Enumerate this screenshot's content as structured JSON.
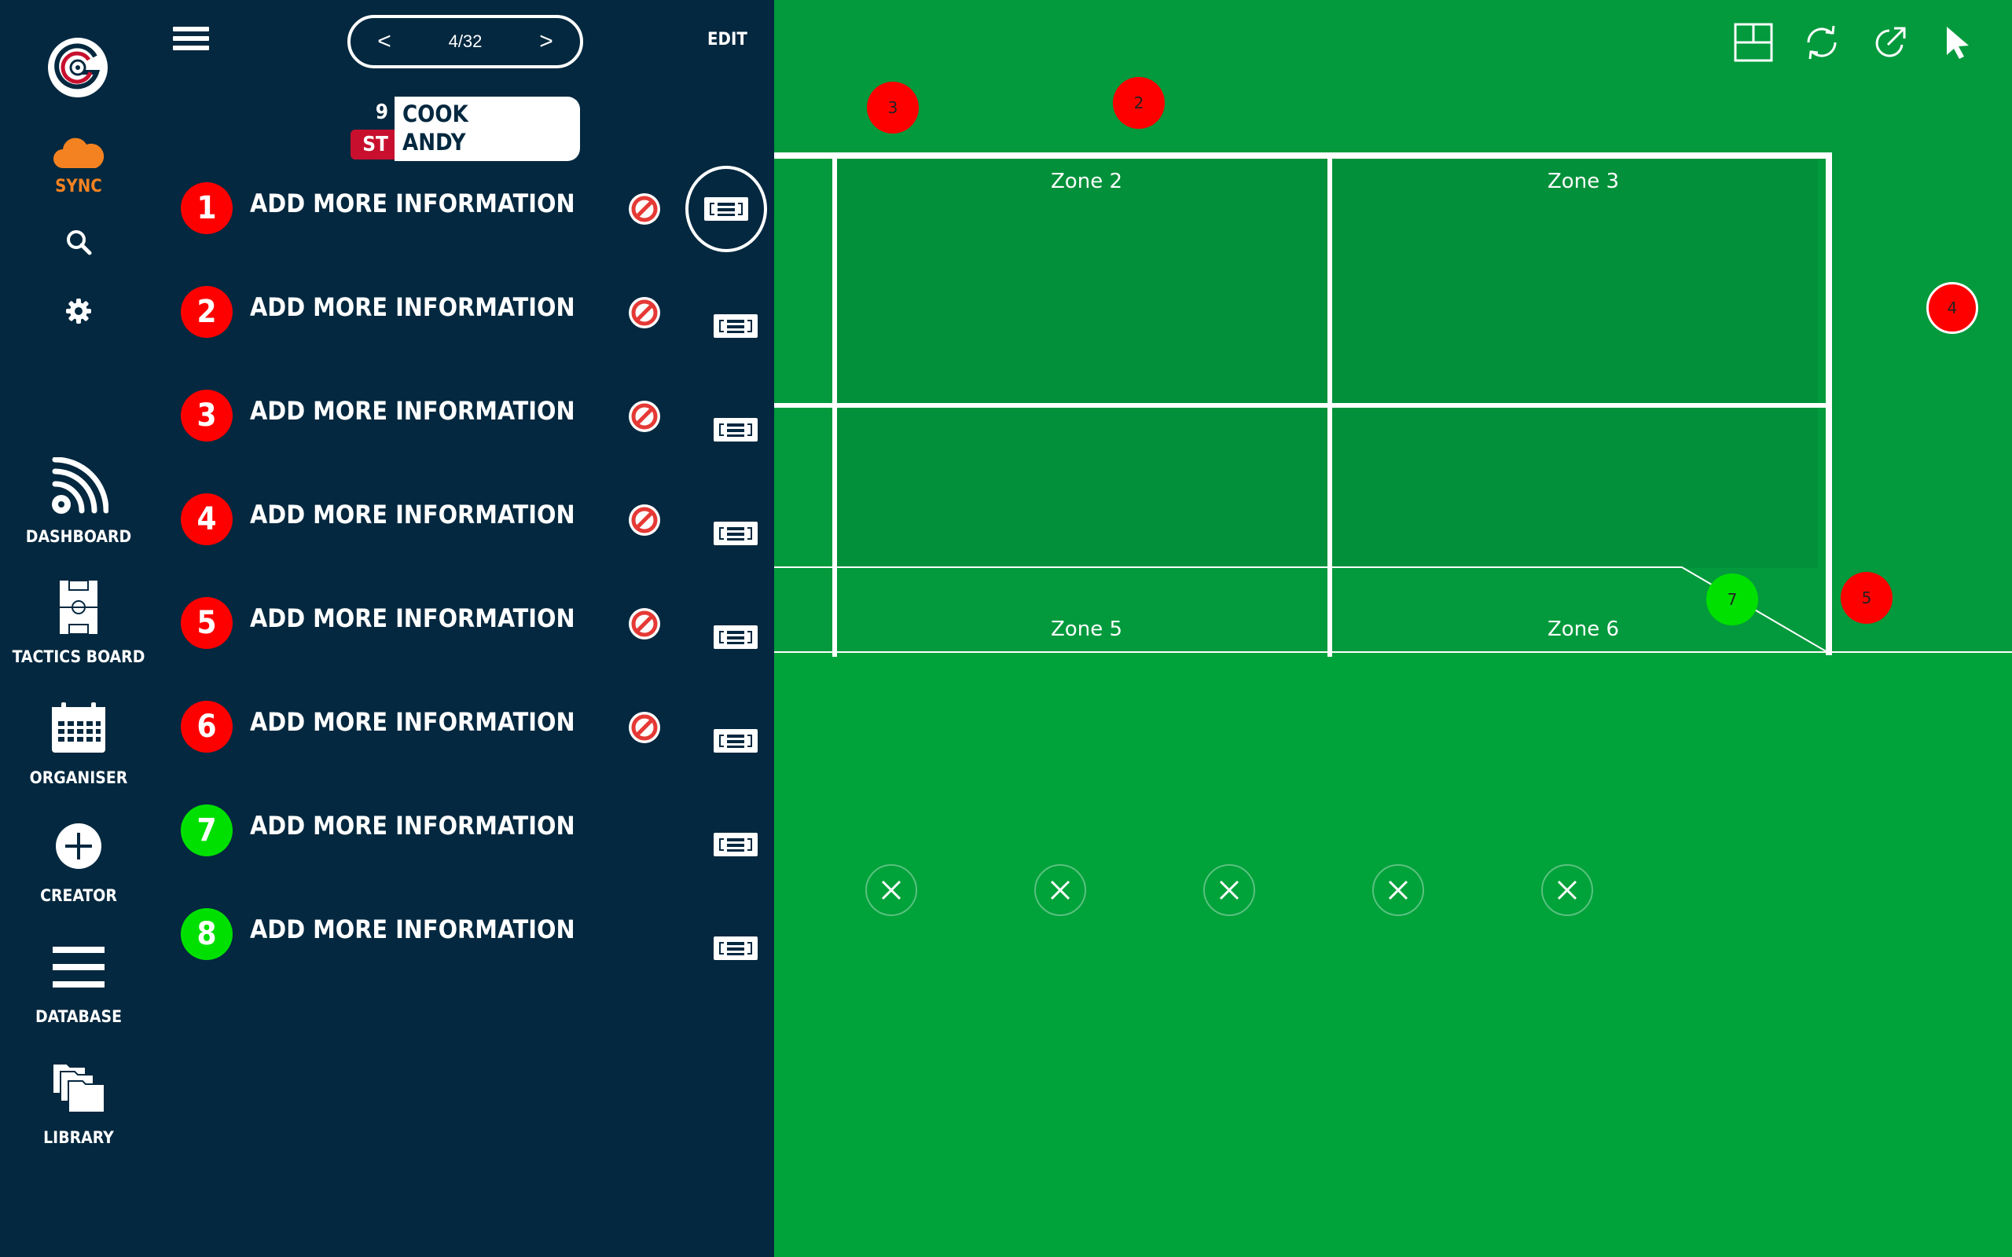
{
  "nav": {
    "sync_label": "SYNC",
    "items": [
      {
        "label": "DASHBOARD",
        "icon": "dashboard-icon"
      },
      {
        "label": "TACTICS BOARD",
        "icon": "tactics-board-icon"
      },
      {
        "label": "ORGANISER",
        "icon": "calendar-icon"
      },
      {
        "label": "CREATOR",
        "icon": "plus-icon"
      },
      {
        "label": "DATABASE",
        "icon": "list-icon"
      },
      {
        "label": "LIBRARY",
        "icon": "folders-icon"
      }
    ]
  },
  "panel": {
    "pager": {
      "count": "4/32",
      "prev": "<",
      "next": ">"
    },
    "edit_label": "EDIT",
    "player": {
      "number": "9",
      "position": "ST",
      "surname": "COOK",
      "firstname": "ANDY"
    },
    "rows": [
      {
        "num": "1",
        "text": "ADD MORE INFORMATION",
        "color": "#ff0000",
        "has_ban": true
      },
      {
        "num": "2",
        "text": "ADD MORE INFORMATION",
        "color": "#ff0000",
        "has_ban": true
      },
      {
        "num": "3",
        "text": "ADD MORE INFORMATION",
        "color": "#ff0000",
        "has_ban": true
      },
      {
        "num": "4",
        "text": "ADD MORE INFORMATION",
        "color": "#ff0000",
        "has_ban": true
      },
      {
        "num": "5",
        "text": "ADD MORE INFORMATION",
        "color": "#ff0000",
        "has_ban": true
      },
      {
        "num": "6",
        "text": "ADD MORE INFORMATION",
        "color": "#ff0000",
        "has_ban": true
      },
      {
        "num": "7",
        "text": "ADD MORE INFORMATION",
        "color": "#00e000",
        "has_ban": false
      },
      {
        "num": "8",
        "text": "ADD MORE INFORMATION",
        "color": "#00e000",
        "has_ban": false
      }
    ]
  },
  "pitch": {
    "zones": [
      "Zone 2",
      "Zone 3",
      "Zone 5",
      "Zone 6"
    ],
    "markers": [
      {
        "label": "3",
        "color": "#ff0000"
      },
      {
        "label": "2",
        "color": "#ff0000"
      },
      {
        "label": "4",
        "color": "#ff0000"
      },
      {
        "label": "7",
        "color": "#00e000"
      },
      {
        "label": "5",
        "color": "#ff0000"
      }
    ]
  },
  "colors": {
    "panel_bg": "#03283f",
    "pitch": "#00a23a",
    "accent_orange": "#f58220",
    "red": "#ff0000",
    "green": "#00e000"
  }
}
